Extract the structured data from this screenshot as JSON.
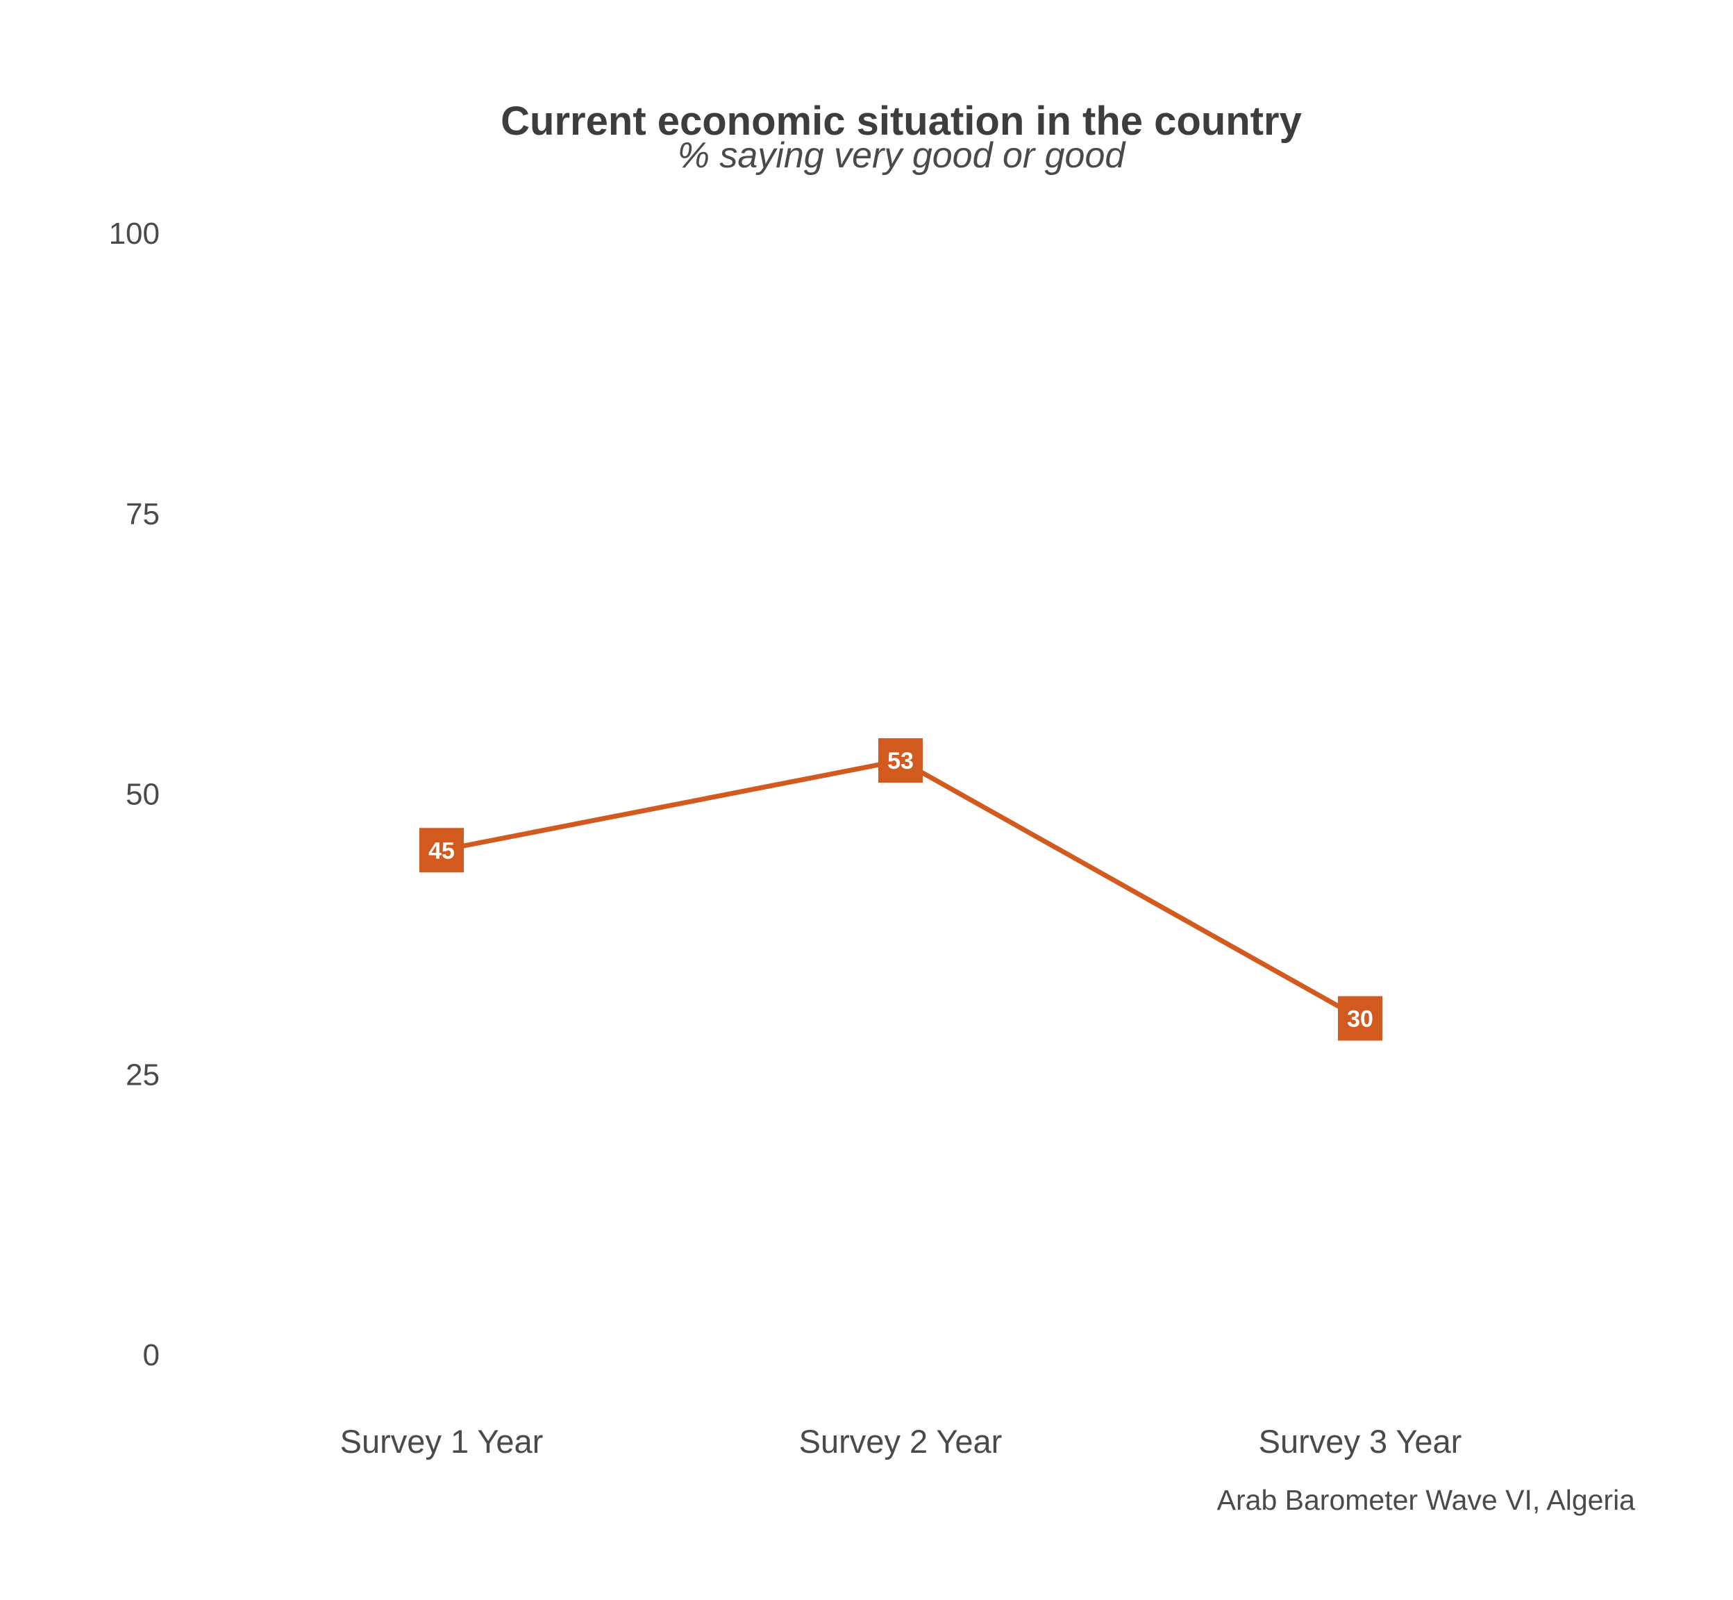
{
  "chart_data": {
    "type": "line",
    "title": "Current economic situation in the country",
    "subtitle": "% saying very good or good",
    "caption": "Arab Barometer Wave VI, Algeria",
    "categories": [
      "Survey 1 Year",
      "Survey 2 Year",
      "Survey 3 Year"
    ],
    "values": [
      45,
      53,
      30
    ],
    "data_labels": [
      "45",
      "53",
      "30"
    ],
    "yticks": [
      "0",
      "25",
      "50",
      "75",
      "100"
    ],
    "ylim": [
      0,
      100
    ],
    "xlabel": "",
    "ylabel": "",
    "grid": false,
    "legend": "none",
    "line_color": "#d35a1f",
    "label_color": "#ffffff"
  }
}
